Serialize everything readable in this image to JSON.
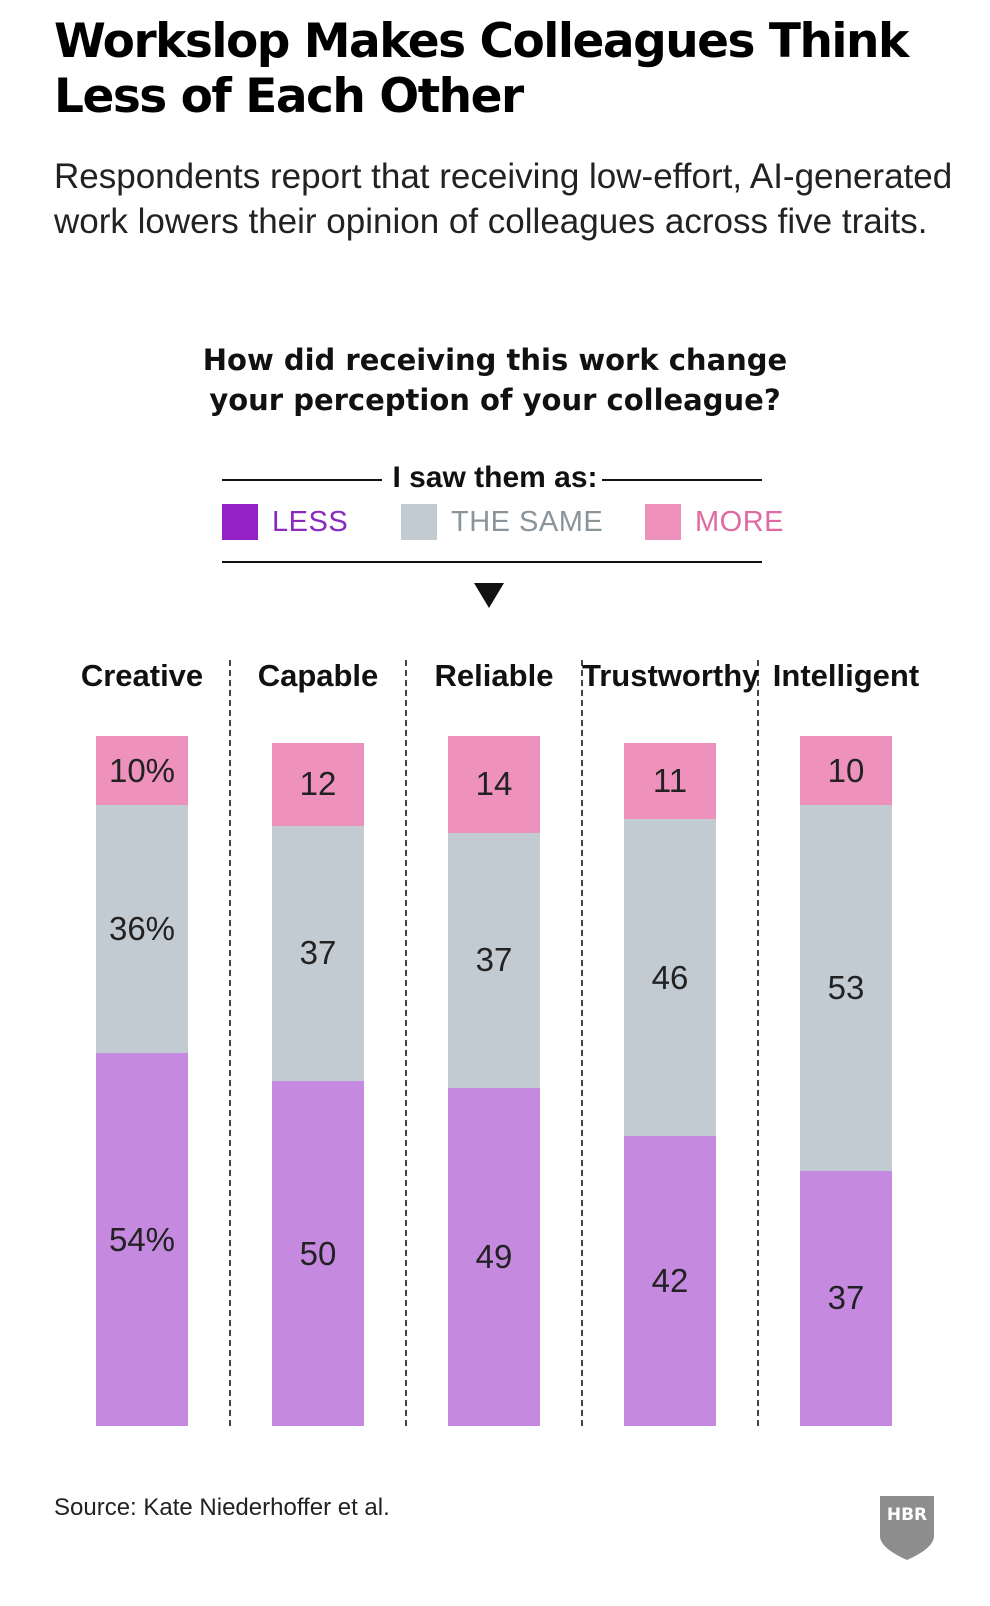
{
  "title": "Workslop Makes Colleagues Think Less of Each Other",
  "subtitle": "Respondents report that receiving low-effort, AI-generated work lowers their opinion of colleagues across five traits.",
  "question": "How did receiving this work change your perception of your colleague?",
  "legend": {
    "heading": "I saw them as:",
    "items": [
      {
        "label": "LESS",
        "color": "#9422c7",
        "text_color": "#8a2bc0"
      },
      {
        "label": "THE SAME",
        "color": "#c1cbd1",
        "text_color": "#8a959b"
      },
      {
        "label": "MORE",
        "color": "#ee92bd",
        "text_color": "#df6aa3"
      }
    ]
  },
  "chart_data": {
    "type": "bar",
    "stacked": true,
    "categories": [
      "Creative",
      "Capable",
      "Reliable",
      "Trustworthy",
      "Intelligent"
    ],
    "series": [
      {
        "name": "LESS",
        "values": [
          54,
          50,
          49,
          42,
          37
        ],
        "color": "#c589e0"
      },
      {
        "name": "THE SAME",
        "values": [
          36,
          37,
          37,
          46,
          53
        ],
        "color": "#c1cbd1"
      },
      {
        "name": "MORE",
        "values": [
          10,
          12,
          14,
          11,
          10
        ],
        "color": "#ee92bd"
      }
    ],
    "value_labels": [
      [
        "54%",
        "50",
        "49",
        "42",
        "37"
      ],
      [
        "36%",
        "37",
        "37",
        "46",
        "53"
      ],
      [
        "10%",
        "12",
        "14",
        "11",
        "10"
      ]
    ],
    "ylim": [
      0,
      100
    ]
  },
  "source": "Source: Kate Niederhoffer et al.",
  "logo": "HBR"
}
